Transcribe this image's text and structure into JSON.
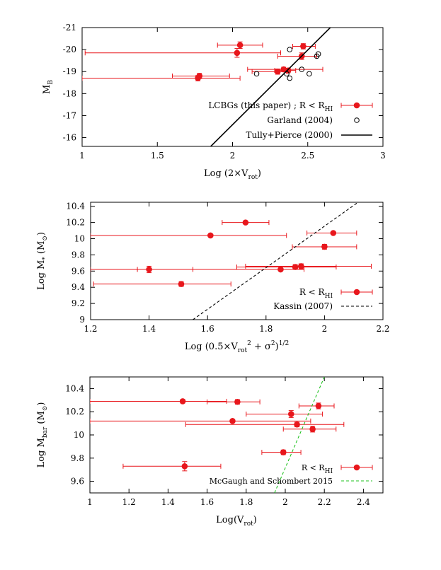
{
  "chart_data": [
    {
      "type": "scatter",
      "xlabel": "Log (2×V",
      "xlabel_sub": "rot",
      "xlabel_tail": ")",
      "ylabel": "M",
      "ylabel_sub": "B",
      "xlim": [
        1,
        3
      ],
      "ylim": [
        -15.6,
        -21
      ],
      "y_reversed": true,
      "xticks": [
        1,
        1.5,
        2,
        2.5,
        3
      ],
      "xtick_labels": [
        "1",
        "1.5",
        "2",
        "2.5",
        "3"
      ],
      "yticks": [
        -16,
        -17,
        -18,
        -19,
        -20,
        -21
      ],
      "ytick_labels": [
        "-16",
        "-17",
        "-18",
        "-19",
        "-20",
        "-21"
      ],
      "legend_position": "bottom-right",
      "series": [
        {
          "name": "LCBGs (this paper) ; R < R",
          "name_sub": "HI",
          "color": "#e8171c",
          "marker": "filled-circle",
          "points": [
            {
              "x": 2.05,
              "y": -20.2,
              "xlo": 1.9,
              "xhi": 2.2,
              "yerr": 0.15
            },
            {
              "x": 2.47,
              "y": -20.15,
              "xlo": 2.4,
              "xhi": 2.55,
              "yerr": 0.12
            },
            {
              "x": 2.03,
              "y": -19.85,
              "xlo": 1.02,
              "xhi": 2.32,
              "yerr": 0.2
            },
            {
              "x": 2.46,
              "y": -19.7,
              "xlo": 2.3,
              "xhi": 2.56,
              "yerr": 0.15
            },
            {
              "x": 2.34,
              "y": -19.1,
              "xlo": 2.1,
              "xhi": 2.6,
              "yerr": 0.1
            },
            {
              "x": 2.3,
              "y": -19.0,
              "xlo": 2.13,
              "xhi": 2.36,
              "yerr": 0.12
            },
            {
              "x": 2.37,
              "y": -19.05,
              "xlo": 2.28,
              "xhi": 2.42,
              "yerr": 0.1
            },
            {
              "x": 1.78,
              "y": -18.8,
              "xlo": 1.6,
              "xhi": 1.98,
              "yerr": 0.12
            },
            {
              "x": 1.77,
              "y": -18.7,
              "xlo": 1.0,
              "xhi": 2.05,
              "yerr": 0.12
            }
          ]
        },
        {
          "name": "Garland (2004)",
          "color": "#000000",
          "marker": "open-circle",
          "points": [
            {
              "x": 2.38,
              "y": -20.0
            },
            {
              "x": 2.57,
              "y": -19.8
            },
            {
              "x": 2.56,
              "y": -19.7
            },
            {
              "x": 2.46,
              "y": -19.1
            },
            {
              "x": 2.16,
              "y": -18.9
            },
            {
              "x": 2.36,
              "y": -18.9
            },
            {
              "x": 2.51,
              "y": -18.9
            },
            {
              "x": 2.38,
              "y": -18.7
            }
          ]
        },
        {
          "name": "Tully+Pierce (2000)",
          "color": "#000000",
          "line": "solid",
          "segment": {
            "x1": 1.855,
            "y1": -15.6,
            "x2": 2.65,
            "y2": -21.0
          }
        }
      ]
    },
    {
      "type": "scatter",
      "xlabel": "Log (0.5×V",
      "xlabel_sub": "rot",
      "xlabel_sup": "2",
      "xlabel_mid": " + σ",
      "xlabel_sup2": "2",
      "xlabel_tail": ")",
      "xlabel_sup3": "1/2",
      "ylabel": "Log M",
      "ylabel_sub": "*",
      "ylabel_unit": " (M",
      "ylabel_unit_sub": "⊙",
      "ylabel_unit_tail": ")",
      "xlim": [
        1.2,
        2.2
      ],
      "ylim": [
        9,
        10.45
      ],
      "xticks": [
        1.2,
        1.4,
        1.6,
        1.8,
        2,
        2.2
      ],
      "xtick_labels": [
        "1.2",
        "1.4",
        "1.6",
        "1.8",
        "2",
        "2.2"
      ],
      "yticks": [
        9,
        9.2,
        9.4,
        9.6,
        9.8,
        10,
        10.2,
        10.4
      ],
      "ytick_labels": [
        "9",
        "9.2",
        "9.4",
        "9.6",
        "9.8",
        "10",
        "10.2",
        "10.4"
      ],
      "legend_position": "bottom-right",
      "series": [
        {
          "name": "R < R",
          "name_sub": "HI",
          "color": "#e8171c",
          "marker": "filled-circle",
          "points": [
            {
              "x": 1.73,
              "y": 10.2,
              "xlo": 1.65,
              "xhi": 1.81,
              "yerr": 0.015
            },
            {
              "x": 2.03,
              "y": 10.07,
              "xlo": 1.94,
              "xhi": 2.11,
              "yerr": 0.015
            },
            {
              "x": 1.61,
              "y": 10.04,
              "xlo": 1.2,
              "xhi": 1.87,
              "yerr": 0.01
            },
            {
              "x": 2.0,
              "y": 9.9,
              "xlo": 1.89,
              "xhi": 2.11,
              "yerr": 0.03
            },
            {
              "x": 1.92,
              "y": 9.66,
              "xlo": 1.73,
              "xhi": 2.16,
              "yerr": 0.03
            },
            {
              "x": 1.9,
              "y": 9.65,
              "xlo": 1.7,
              "xhi": 2.04,
              "yerr": 0.03
            },
            {
              "x": 1.85,
              "y": 9.62,
              "xlo": 1.2,
              "xhi": 1.93,
              "yerr": 0.015
            },
            {
              "x": 1.4,
              "y": 9.62,
              "xlo": 1.36,
              "xhi": 1.55,
              "yerr": 0.04
            },
            {
              "x": 1.51,
              "y": 9.44,
              "xlo": 1.21,
              "xhi": 1.68,
              "yerr": 0.03
            }
          ]
        },
        {
          "name": "Kassin (2007)",
          "color": "#000000",
          "line": "dashed",
          "segment": {
            "x1": 1.55,
            "y1": 9.0,
            "x2": 2.115,
            "y2": 10.45
          }
        }
      ]
    },
    {
      "type": "scatter",
      "xlabel": "Log(V",
      "xlabel_sub": "rot",
      "xlabel_tail": ")",
      "ylabel": "Log M",
      "ylabel_sub": "bar",
      "ylabel_unit": " (M",
      "ylabel_unit_sub": "⊙",
      "ylabel_unit_tail": ")",
      "xlim": [
        1,
        2.5
      ],
      "ylim": [
        9.5,
        10.5
      ],
      "xticks": [
        1,
        1.2,
        1.4,
        1.6,
        1.8,
        2,
        2.2,
        2.4
      ],
      "xtick_labels": [
        "1",
        "1.2",
        "1.4",
        "1.6",
        "1.8",
        "2",
        "2.2",
        "2.4"
      ],
      "yticks": [
        9.6,
        9.8,
        10,
        10.2,
        10.4
      ],
      "ytick_labels": [
        "9.6",
        "9.8",
        "10",
        "10.2",
        "10.4"
      ],
      "legend_position": "bottom-right",
      "series": [
        {
          "name": "R < R",
          "name_sub": "HI",
          "color": "#e8171c",
          "marker": "filled-circle",
          "points": [
            {
              "x": 1.475,
              "y": 10.29,
              "xlo": 1.0,
              "xhi": 1.7,
              "yerr": 0.015
            },
            {
              "x": 1.755,
              "y": 10.285,
              "xlo": 1.6,
              "xhi": 1.87,
              "yerr": 0.02
            },
            {
              "x": 2.17,
              "y": 10.25,
              "xlo": 2.07,
              "xhi": 2.25,
              "yerr": 0.025
            },
            {
              "x": 2.03,
              "y": 10.18,
              "xlo": 1.8,
              "xhi": 2.19,
              "yerr": 0.03
            },
            {
              "x": 1.73,
              "y": 10.12,
              "xlo": 1.0,
              "xhi": 2.13,
              "yerr": 0.01
            },
            {
              "x": 2.06,
              "y": 10.09,
              "xlo": 1.49,
              "xhi": 2.3,
              "yerr": 0.02
            },
            {
              "x": 2.14,
              "y": 10.05,
              "xlo": 1.99,
              "xhi": 2.26,
              "yerr": 0.025
            },
            {
              "x": 1.99,
              "y": 9.85,
              "xlo": 1.88,
              "xhi": 2.08,
              "yerr": 0.02
            },
            {
              "x": 1.485,
              "y": 9.73,
              "xlo": 1.17,
              "xhi": 1.67,
              "yerr": 0.04
            }
          ]
        },
        {
          "name": "McGaugh and Schombert 2015",
          "color": "#22c322",
          "line": "dashed",
          "segment": {
            "x1": 1.945,
            "y1": 9.5,
            "x2": 2.2,
            "y2": 10.5
          }
        }
      ]
    }
  ]
}
